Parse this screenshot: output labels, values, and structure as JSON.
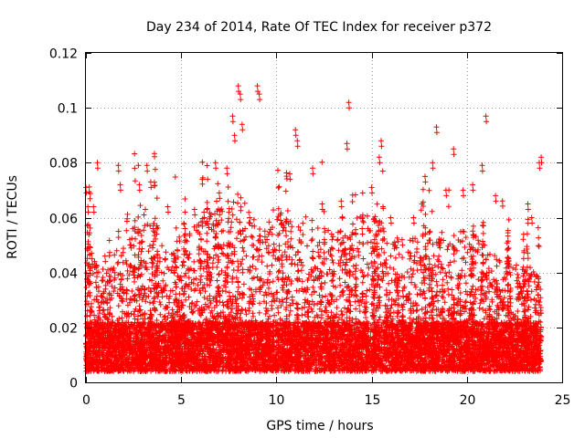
{
  "chart_data": {
    "type": "scatter",
    "title": "Day 234 of 2014, Rate Of TEC Index for receiver p372",
    "xlabel": "GPS time / hours",
    "ylabel": "ROTI / TECUs",
    "xlim": [
      0,
      25
    ],
    "ylim": [
      0,
      0.12
    ],
    "x_ticks": [
      0,
      5,
      10,
      15,
      20,
      25
    ],
    "x_tick_labels": [
      "0",
      "5",
      "10",
      "15",
      "20",
      "25"
    ],
    "y_ticks": [
      0,
      0.02,
      0.04,
      0.06,
      0.08,
      0.1,
      0.12
    ],
    "y_tick_labels": [
      "0",
      "0.02",
      "0.04",
      "0.06",
      "0.08",
      "0.1",
      "0.12"
    ],
    "grid": true,
    "marker": "+",
    "marker_color": "#ff0000",
    "series": [
      {
        "name": "ROTI",
        "points_estimated": [
          [
            0.0,
            0.071
          ],
          [
            0.1,
            0.064
          ],
          [
            0.3,
            0.047
          ],
          [
            0.4,
            0.064
          ],
          [
            0.6,
            0.08
          ],
          [
            1.0,
            0.046
          ],
          [
            1.5,
            0.04
          ],
          [
            1.7,
            0.079
          ],
          [
            1.8,
            0.072
          ],
          [
            2.3,
            0.052
          ],
          [
            2.8,
            0.072
          ],
          [
            3.2,
            0.079
          ],
          [
            3.4,
            0.073
          ],
          [
            3.7,
            0.056
          ],
          [
            4.3,
            0.064
          ],
          [
            4.6,
            0.047
          ],
          [
            5.2,
            0.056
          ],
          [
            5.7,
            0.063
          ],
          [
            6.2,
            0.062
          ],
          [
            6.8,
            0.08
          ],
          [
            7.0,
            0.069
          ],
          [
            7.4,
            0.078
          ],
          [
            7.7,
            0.097
          ],
          [
            7.8,
            0.09
          ],
          [
            8.0,
            0.108
          ],
          [
            8.1,
            0.105
          ],
          [
            8.2,
            0.094
          ],
          [
            8.6,
            0.06
          ],
          [
            9.0,
            0.108
          ],
          [
            9.1,
            0.105
          ],
          [
            9.4,
            0.053
          ],
          [
            10.2,
            0.061
          ],
          [
            10.7,
            0.076
          ],
          [
            11.0,
            0.092
          ],
          [
            11.1,
            0.088
          ],
          [
            11.9,
            0.078
          ],
          [
            12.4,
            0.065
          ],
          [
            12.9,
            0.054
          ],
          [
            13.4,
            0.066
          ],
          [
            13.7,
            0.087
          ],
          [
            13.8,
            0.102
          ],
          [
            14.5,
            0.056
          ],
          [
            15.0,
            0.071
          ],
          [
            15.4,
            0.082
          ],
          [
            15.5,
            0.088
          ],
          [
            16.0,
            0.06
          ],
          [
            16.6,
            0.052
          ],
          [
            17.2,
            0.06
          ],
          [
            17.8,
            0.075
          ],
          [
            18.2,
            0.08
          ],
          [
            18.4,
            0.093
          ],
          [
            18.9,
            0.07
          ],
          [
            19.3,
            0.085
          ],
          [
            19.8,
            0.07
          ],
          [
            20.3,
            0.072
          ],
          [
            20.8,
            0.079
          ],
          [
            21.0,
            0.097
          ],
          [
            21.5,
            0.068
          ],
          [
            22.2,
            0.045
          ],
          [
            22.8,
            0.035
          ],
          [
            23.2,
            0.065
          ],
          [
            23.4,
            0.06
          ],
          [
            23.8,
            0.08
          ],
          [
            23.9,
            0.082
          ]
        ],
        "density_note": "thousands of points, dense band between 0.005 and 0.03 across 0-24 h"
      }
    ]
  }
}
